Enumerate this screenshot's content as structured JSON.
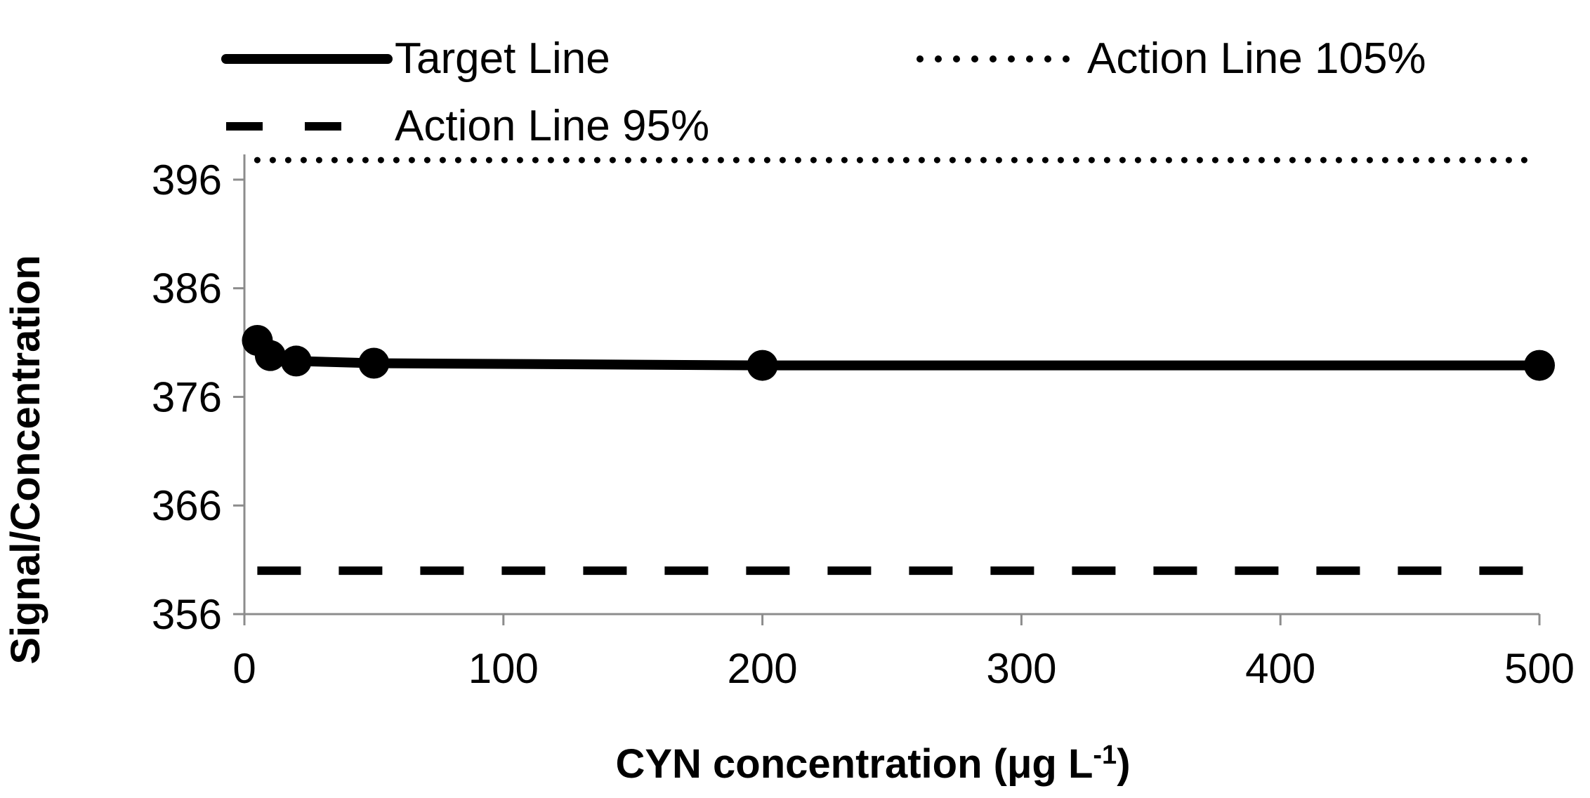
{
  "chart_data": {
    "type": "line",
    "title": "",
    "xlabel": "CYN concentration (μg L",
    "xlabel_superscript": "-1",
    "xlabel_close": ")",
    "ylabel": "Signal/Concentration",
    "xlim": [
      0,
      500
    ],
    "ylim": [
      356,
      398
    ],
    "xticks": [
      0,
      100,
      200,
      300,
      400,
      500
    ],
    "xtick_labels": [
      "0",
      "100",
      "200",
      "300",
      "400",
      "500"
    ],
    "yticks": [
      356,
      366,
      376,
      386,
      396
    ],
    "ytick_labels": [
      "356",
      "366",
      "376",
      "386",
      "396"
    ],
    "grid": false,
    "legend_placement": "top",
    "series": [
      {
        "name": "Target Line",
        "style": "solid",
        "markers": true,
        "x": [
          5,
          10,
          20,
          50,
          200,
          500
        ],
        "y": [
          381.2,
          379.8,
          379.3,
          379.1,
          378.9,
          378.9
        ]
      },
      {
        "name": "Action Line 105%",
        "style": "dotted",
        "markers": false,
        "x": [
          5,
          500
        ],
        "y": [
          397.8,
          397.8
        ]
      },
      {
        "name": "Action Line 95%",
        "style": "dashed",
        "markers": false,
        "x": [
          5,
          500
        ],
        "y": [
          360.0,
          360.0
        ]
      }
    ],
    "colors": {
      "ink": "#000000",
      "axis": "#8c8c8c",
      "background": "#ffffff"
    }
  }
}
